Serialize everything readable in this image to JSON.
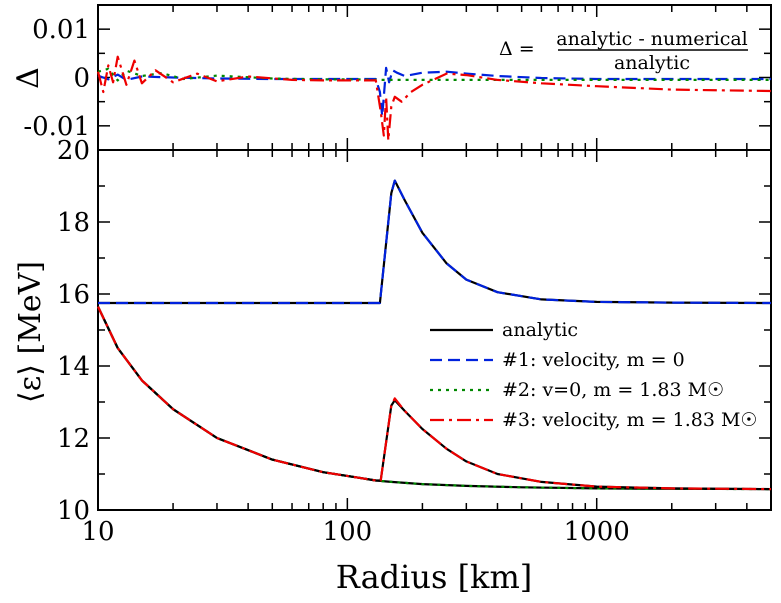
{
  "chart_data": [
    {
      "panel": "top",
      "type": "line",
      "ylabel": "Δ",
      "ylim": [
        -0.015,
        0.015
      ],
      "yticks": [
        0.01,
        0,
        -0.01
      ],
      "ytick_labels": [
        "0.01",
        "0",
        "-0.01"
      ],
      "x_scale": "log",
      "xlim": [
        10,
        5000
      ],
      "annotation": {
        "lhs": "Δ =",
        "numerator": "analytic - numerical",
        "denominator": "analytic"
      },
      "series": [
        {
          "name": "#1: velocity, m = 0",
          "color": "#0022dd",
          "dash": "12,6",
          "x": [
            10,
            11,
            12,
            13,
            15,
            20,
            30,
            50,
            80,
            110,
            130,
            135,
            138,
            140,
            143,
            147,
            152,
            158,
            170,
            200,
            250,
            300,
            400,
            600,
            1000,
            2000,
            5000
          ],
          "y": [
            0.0004,
            -0.0004,
            0.0006,
            -0.0005,
            0.0002,
            0.0,
            -0.0002,
            -0.0003,
            -0.0003,
            -0.0003,
            -0.0003,
            -0.003,
            -0.008,
            -0.004,
            0.002,
            -0.001,
            0.0015,
            0.001,
            0.0003,
            0.001,
            0.0012,
            0.0008,
            0.0003,
            -0.0001,
            -0.0003,
            -0.0003,
            -0.0003
          ]
        },
        {
          "name": "#2: v=0, m = 1.83 M☉",
          "color": "#008800",
          "dash": "3,5",
          "x": [
            10,
            11,
            12,
            13,
            15,
            18,
            22,
            30,
            50,
            80,
            110,
            130,
            140,
            160,
            200,
            300,
            500,
            1000,
            2000,
            5000
          ],
          "y": [
            0.0012,
            0.0018,
            -0.0006,
            0.0014,
            0.0003,
            0.0009,
            -0.0003,
            0.0004,
            -0.0002,
            -0.0004,
            -0.0004,
            -0.0005,
            -0.0005,
            -0.0005,
            -0.0005,
            -0.0005,
            -0.0005,
            -0.0005,
            -0.0005,
            -0.0005
          ]
        },
        {
          "name": "#3: velocity, m = 1.83 M☉",
          "color": "#ee0000",
          "dash": "14,5,3,5",
          "x": [
            10,
            10.5,
            11,
            11.5,
            12,
            13,
            14,
            15,
            17,
            20,
            25,
            30,
            40,
            60,
            80,
            110,
            130,
            136,
            140,
            143,
            146,
            150,
            155,
            165,
            180,
            200,
            250,
            300,
            400,
            600,
            1000,
            2000,
            5000
          ],
          "y": [
            0.0012,
            -0.003,
            0.0025,
            -0.001,
            0.0043,
            -0.0015,
            0.0035,
            -0.0012,
            0.0015,
            -0.001,
            0.0008,
            -0.0008,
            0.0002,
            -0.0005,
            -0.0006,
            -0.0006,
            -0.0006,
            -0.007,
            -0.012,
            -0.004,
            -0.013,
            -0.006,
            -0.004,
            -0.005,
            -0.003,
            -0.0015,
            0.0008,
            0.0005,
            -0.0005,
            -0.0012,
            -0.0018,
            -0.0025,
            -0.0028
          ]
        }
      ]
    },
    {
      "panel": "bottom",
      "type": "line",
      "xlabel": "Radius [km]",
      "ylabel": "⟨ε⟩ [MeV]",
      "x_scale": "log",
      "xlim": [
        10,
        5000
      ],
      "ylim": [
        10,
        20
      ],
      "yticks": [
        10,
        12,
        14,
        16,
        18,
        20
      ],
      "xticks": [
        10,
        100,
        1000
      ],
      "xtick_labels": [
        "10",
        "100",
        "1000"
      ],
      "ytick_labels": [
        "10",
        "12",
        "14",
        "16",
        "18",
        "20"
      ],
      "legend": [
        {
          "label": "analytic",
          "color": "#000000",
          "dash": ""
        },
        {
          "label": "#1: velocity, m = 0",
          "color": "#0022dd",
          "dash": "12,6"
        },
        {
          "label": "#2: v=0, m = 1.83 M☉",
          "color": "#008800",
          "dash": "3,5"
        },
        {
          "label": "#3: velocity, m = 1.83 M☉",
          "color": "#ee0000",
          "dash": "14,5,3,5"
        }
      ],
      "series": [
        {
          "name": "analytic",
          "color": "#000000",
          "dash": "",
          "x": [
            10,
            135,
            150,
            155,
            170,
            200,
            250,
            300,
            400,
            600,
            1000,
            2000,
            5000
          ],
          "y": [
            15.75,
            15.75,
            18.8,
            19.15,
            18.6,
            17.7,
            16.85,
            16.4,
            16.05,
            15.85,
            15.78,
            15.76,
            15.75
          ]
        },
        {
          "name": "#1: velocity, m = 0",
          "color": "#0022dd",
          "dash": "12,6",
          "x": [
            10,
            135,
            150,
            155,
            170,
            200,
            250,
            300,
            400,
            600,
            1000,
            2000,
            5000
          ],
          "y": [
            15.75,
            15.75,
            18.8,
            19.15,
            18.6,
            17.7,
            16.85,
            16.4,
            16.05,
            15.85,
            15.78,
            15.76,
            15.75
          ]
        },
        {
          "name": "analytic",
          "color": "#000000",
          "dash": "",
          "x": [
            10,
            12,
            15,
            20,
            30,
            50,
            80,
            110,
            130,
            150,
            200,
            300,
            500,
            1000,
            2000,
            5000
          ],
          "y": [
            15.65,
            14.5,
            13.6,
            12.8,
            12.0,
            11.4,
            11.05,
            10.9,
            10.82,
            10.78,
            10.72,
            10.67,
            10.63,
            10.6,
            10.59,
            10.58
          ]
        },
        {
          "name": "#2: v=0, m = 1.83 M☉",
          "color": "#008800",
          "dash": "3,5",
          "x": [
            10,
            12,
            15,
            20,
            30,
            50,
            80,
            110,
            130,
            150,
            200,
            300,
            500,
            1000,
            2000,
            5000
          ],
          "y": [
            15.65,
            14.5,
            13.6,
            12.8,
            12.0,
            11.4,
            11.05,
            10.9,
            10.82,
            10.78,
            10.72,
            10.67,
            10.63,
            10.6,
            10.59,
            10.58
          ]
        },
        {
          "name": "analytic",
          "color": "#000000",
          "dash": "",
          "x": [
            10,
            12,
            15,
            20,
            30,
            50,
            80,
            110,
            130,
            136,
            150,
            155,
            170,
            200,
            250,
            300,
            400,
            600,
            1000,
            2000,
            5000
          ],
          "y": [
            15.65,
            14.5,
            13.6,
            12.8,
            12.0,
            11.4,
            11.05,
            10.9,
            10.82,
            10.82,
            12.9,
            13.05,
            12.75,
            12.25,
            11.7,
            11.35,
            11.0,
            10.78,
            10.65,
            10.6,
            10.58
          ]
        },
        {
          "name": "#3: velocity, m = 1.83 M☉",
          "color": "#ee0000",
          "dash": "14,5,3,5",
          "x": [
            10,
            12,
            15,
            20,
            30,
            50,
            80,
            110,
            130,
            136,
            150,
            155,
            170,
            200,
            250,
            300,
            400,
            600,
            1000,
            2000,
            5000
          ],
          "y": [
            15.65,
            14.5,
            13.6,
            12.8,
            12.0,
            11.4,
            11.05,
            10.9,
            10.82,
            10.82,
            12.9,
            13.1,
            12.75,
            12.25,
            11.7,
            11.35,
            11.0,
            10.78,
            10.65,
            10.6,
            10.58
          ]
        }
      ]
    }
  ]
}
